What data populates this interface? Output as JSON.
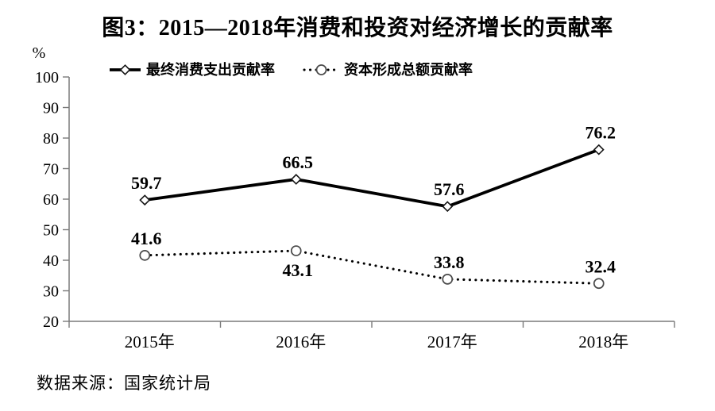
{
  "title": "图3：2015—2018年消费和投资对经济增长的贡献率",
  "source": "数据来源：国家统计局",
  "chart_data": {
    "type": "line",
    "categories": [
      "2015年",
      "2016年",
      "2017年",
      "2018年"
    ],
    "series": [
      {
        "name": "最终消费支出贡献率",
        "values": [
          59.7,
          66.5,
          57.6,
          76.2
        ],
        "line_style": "solid",
        "marker": "diamond",
        "label_positions": [
          "above",
          "above",
          "above",
          "above"
        ]
      },
      {
        "name": "资本形成总额贡献率",
        "values": [
          41.6,
          43.1,
          33.8,
          32.4
        ],
        "line_style": "dotted",
        "marker": "circle",
        "label_positions": [
          "above",
          "below",
          "above",
          "above"
        ]
      }
    ],
    "ylabel": "%",
    "ylim": [
      20,
      100
    ],
    "ytick_step": 10,
    "grid": false,
    "legend_position": "top",
    "colors": {
      "series": "#000000",
      "axis": "#7a7a7a",
      "text": "#000000",
      "marker_fill": "#ffffff",
      "background": "#ffffff"
    }
  }
}
